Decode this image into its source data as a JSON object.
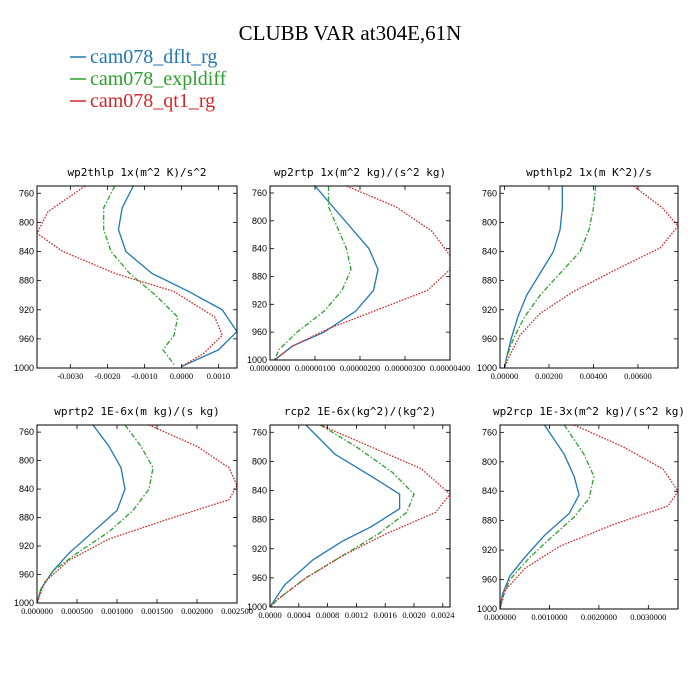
{
  "figure": {
    "title": "CLUBB VAR at304E,61N",
    "legend": [
      {
        "name": "cam078_dflt_rg",
        "color": "#1f77b4",
        "dash": "solid"
      },
      {
        "name": "cam078_expldiff",
        "color": "#2ca02c",
        "dash": "dashdot"
      },
      {
        "name": "cam078_qt1_rg",
        "color": "#d62728",
        "dash": "dotted"
      }
    ]
  },
  "chart_data": [
    {
      "type": "line",
      "title": "wp2thlp  1x(m^2 K)/s^2",
      "xlim": [
        -0.0039,
        0.0015
      ],
      "ylim": [
        750,
        1000
      ],
      "y_reversed": true,
      "xticks": [
        -0.003,
        -0.002,
        -0.001,
        0.0,
        0.001
      ],
      "xtick_labels": [
        "-0.0030",
        "-0.0020",
        "-0.0010",
        "0.0000",
        "0.0010"
      ],
      "yticks": [
        760,
        800,
        840,
        880,
        920,
        960,
        1000
      ],
      "series": [
        {
          "name": "cam078_dflt_rg",
          "points": [
            [
              -0.0013,
              750
            ],
            [
              -0.0016,
              780
            ],
            [
              -0.0017,
              810
            ],
            [
              -0.0015,
              840
            ],
            [
              -0.0008,
              870
            ],
            [
              0.0002,
              895
            ],
            [
              0.0011,
              920
            ],
            [
              0.0015,
              950
            ],
            [
              0.001,
              975
            ],
            [
              0.0,
              998
            ]
          ]
        },
        {
          "name": "cam078_expldiff",
          "points": [
            [
              -0.0018,
              750
            ],
            [
              -0.0021,
              780
            ],
            [
              -0.0021,
              810
            ],
            [
              -0.0019,
              840
            ],
            [
              -0.0014,
              870
            ],
            [
              -0.0007,
              900
            ],
            [
              -0.0001,
              930
            ],
            [
              -0.0002,
              955
            ],
            [
              -0.0005,
              975
            ],
            [
              -0.0002,
              995
            ]
          ]
        },
        {
          "name": "cam078_qt1_rg",
          "points": [
            [
              -0.0026,
              750
            ],
            [
              -0.0036,
              785
            ],
            [
              -0.0039,
              815
            ],
            [
              -0.0032,
              840
            ],
            [
              -0.0018,
              870
            ],
            [
              -0.0002,
              895
            ],
            [
              0.0009,
              930
            ],
            [
              0.0011,
              955
            ],
            [
              0.0006,
              980
            ],
            [
              0.0,
              998
            ]
          ]
        }
      ]
    },
    {
      "type": "line",
      "title": "wp2rtp  1x(m^2 kg)/(s^2 kg)",
      "xlim": [
        0.0,
        4e-06
      ],
      "ylim": [
        750,
        1000
      ],
      "y_reversed": true,
      "xticks": [
        0.0,
        1e-06,
        2e-06,
        3e-06,
        4e-06
      ],
      "xtick_labels": [
        "0.000000",
        "0.000001",
        "0.000002",
        "0.000003",
        "0.000004"
      ],
      "xtick_label_suffix_pairs": [
        "0.00000000",
        "0.00000100",
        "0.00000200",
        "0.00000300",
        "0.00000400"
      ],
      "yticks": [
        760,
        800,
        840,
        880,
        920,
        960,
        1000
      ],
      "series": [
        {
          "name": "cam078_dflt_rg",
          "points": [
            [
              1e-06,
              750
            ],
            [
              1.4e-06,
              780
            ],
            [
              1.8e-06,
              810
            ],
            [
              2.2e-06,
              840
            ],
            [
              2.4e-06,
              870
            ],
            [
              2.3e-06,
              900
            ],
            [
              1.9e-06,
              930
            ],
            [
              1.2e-06,
              960
            ],
            [
              5e-07,
              980
            ],
            [
              1e-07,
              1000
            ]
          ]
        },
        {
          "name": "cam078_expldiff",
          "points": [
            [
              1.3e-06,
              750
            ],
            [
              1.3e-06,
              780
            ],
            [
              1.5e-06,
              810
            ],
            [
              1.7e-06,
              840
            ],
            [
              1.8e-06,
              870
            ],
            [
              1.6e-06,
              900
            ],
            [
              1.2e-06,
              930
            ],
            [
              6e-07,
              960
            ],
            [
              2e-07,
              985
            ],
            [
              1e-07,
              1000
            ]
          ]
        },
        {
          "name": "cam078_qt1_rg",
          "points": [
            [
              1.7e-06,
              750
            ],
            [
              2.8e-06,
              780
            ],
            [
              3.6e-06,
              815
            ],
            [
              4e-06,
              850
            ],
            [
              4e-06,
              870
            ],
            [
              3.5e-06,
              900
            ],
            [
              2.5e-06,
              925
            ],
            [
              1.3e-06,
              955
            ],
            [
              5e-07,
              980
            ],
            [
              1e-07,
              1000
            ]
          ]
        }
      ]
    },
    {
      "type": "line",
      "title": "wpthlp2  1x(m K^2)/s",
      "xlim": [
        -0.0002,
        0.0078
      ],
      "ylim": [
        750,
        1000
      ],
      "y_reversed": true,
      "xticks": [
        0.0,
        0.002,
        0.004,
        0.006
      ],
      "xtick_labels": [
        "0.00000",
        "0.00200",
        "0.00400",
        "0.00600"
      ],
      "yticks": [
        760,
        800,
        840,
        880,
        920,
        960,
        1000
      ],
      "series": [
        {
          "name": "cam078_dflt_rg",
          "points": [
            [
              0.0026,
              750
            ],
            [
              0.0026,
              780
            ],
            [
              0.0025,
              810
            ],
            [
              0.0022,
              840
            ],
            [
              0.0016,
              870
            ],
            [
              0.001,
              900
            ],
            [
              0.0006,
              930
            ],
            [
              0.0003,
              960
            ],
            [
              0.0001,
              985
            ],
            [
              0.0,
              1000
            ]
          ]
        },
        {
          "name": "cam078_expldiff",
          "points": [
            [
              0.0041,
              750
            ],
            [
              0.004,
              780
            ],
            [
              0.0038,
              810
            ],
            [
              0.0034,
              840
            ],
            [
              0.0025,
              870
            ],
            [
              0.0016,
              900
            ],
            [
              0.0009,
              930
            ],
            [
              0.0004,
              960
            ],
            [
              0.0001,
              985
            ],
            [
              0.0,
              1000
            ]
          ]
        },
        {
          "name": "cam078_qt1_rg",
          "points": [
            [
              0.0058,
              750
            ],
            [
              0.0071,
              780
            ],
            [
              0.0078,
              805
            ],
            [
              0.007,
              835
            ],
            [
              0.005,
              865
            ],
            [
              0.0031,
              895
            ],
            [
              0.0016,
              925
            ],
            [
              0.0007,
              955
            ],
            [
              0.0002,
              985
            ],
            [
              0.0,
              1000
            ]
          ]
        }
      ]
    },
    {
      "type": "line",
      "title": "wprtp2  1E-6x(m kg)/(s kg)",
      "xlim": [
        0.0,
        0.0025
      ],
      "ylim": [
        750,
        1000
      ],
      "y_reversed": true,
      "xticks": [
        0.0,
        0.0005,
        0.001,
        0.0015,
        0.002,
        0.0025
      ],
      "xtick_labels": [
        "0.000000",
        "0.000500",
        "0.001000",
        "0.001500",
        "0.002000",
        "0.002500"
      ],
      "yticks": [
        760,
        800,
        840,
        880,
        920,
        960,
        1000
      ],
      "series": [
        {
          "name": "cam078_dflt_rg",
          "points": [
            [
              0.0007,
              750
            ],
            [
              0.0009,
              780
            ],
            [
              0.00105,
              810
            ],
            [
              0.0011,
              840
            ],
            [
              0.001,
              870
            ],
            [
              0.0007,
              900
            ],
            [
              0.0004,
              930
            ],
            [
              0.0002,
              955
            ],
            [
              5e-05,
              980
            ],
            [
              0.0,
              1000
            ]
          ]
        },
        {
          "name": "cam078_expldiff",
          "points": [
            [
              0.0011,
              750
            ],
            [
              0.0013,
              780
            ],
            [
              0.00145,
              810
            ],
            [
              0.0014,
              840
            ],
            [
              0.0012,
              870
            ],
            [
              0.0009,
              900
            ],
            [
              0.0005,
              930
            ],
            [
              0.0002,
              955
            ],
            [
              5e-05,
              980
            ],
            [
              0.0,
              1000
            ]
          ]
        },
        {
          "name": "cam078_qt1_rg",
          "points": [
            [
              0.0014,
              750
            ],
            [
              0.002,
              780
            ],
            [
              0.0024,
              810
            ],
            [
              0.0025,
              835
            ],
            [
              0.0024,
              855
            ],
            [
              0.0017,
              880
            ],
            [
              0.0009,
              910
            ],
            [
              0.0004,
              940
            ],
            [
              0.0001,
              970
            ],
            [
              0.0,
              1000
            ]
          ]
        }
      ]
    },
    {
      "type": "line",
      "title": "rcp2  1E-6x(kg^2)/(kg^2)",
      "xlim": [
        0.0,
        0.0025
      ],
      "ylim": [
        750,
        1000
      ],
      "y_reversed": true,
      "xticks": [
        0.0,
        0.0004,
        0.0008,
        0.0012,
        0.0016,
        0.002,
        0.0024
      ],
      "xtick_labels": [
        "0.0000",
        "0.0004",
        "0.0008",
        "0.0012",
        "0.0016",
        "0.0020",
        "0.0024"
      ],
      "yticks": [
        760,
        800,
        840,
        880,
        920,
        960,
        1000
      ],
      "series": [
        {
          "name": "cam078_dflt_rg",
          "points": [
            [
              0.0005,
              750
            ],
            [
              0.0009,
              790
            ],
            [
              0.0014,
              820
            ],
            [
              0.0018,
              845
            ],
            [
              0.0018,
              865
            ],
            [
              0.0014,
              890
            ],
            [
              0.001,
              910
            ],
            [
              0.0006,
              935
            ],
            [
              0.0002,
              970
            ],
            [
              0.0,
              1000
            ]
          ]
        },
        {
          "name": "cam078_expldiff",
          "points": [
            [
              0.0007,
              750
            ],
            [
              0.0012,
              780
            ],
            [
              0.0017,
              815
            ],
            [
              0.002,
              845
            ],
            [
              0.0019,
              870
            ],
            [
              0.0015,
              900
            ],
            [
              0.001,
              930
            ],
            [
              0.0005,
              960
            ],
            [
              0.0001,
              990
            ],
            [
              0.0,
              1000
            ]
          ]
        },
        {
          "name": "cam078_qt1_rg",
          "points": [
            [
              0.0007,
              750
            ],
            [
              0.0014,
              780
            ],
            [
              0.0021,
              810
            ],
            [
              0.0025,
              845
            ],
            [
              0.0023,
              870
            ],
            [
              0.0016,
              900
            ],
            [
              0.001,
              930
            ],
            [
              0.0005,
              960
            ],
            [
              0.0001,
              990
            ],
            [
              0.0,
              1000
            ]
          ]
        }
      ]
    },
    {
      "type": "line",
      "title": "wp2rcp  1E-3x(m^2 kg)/(s^2 kg)",
      "xlim": [
        0.0,
        0.0036
      ],
      "ylim": [
        750,
        1000
      ],
      "y_reversed": true,
      "xticks": [
        0.0,
        0.001,
        0.002,
        0.003
      ],
      "xtick_labels": [
        "0.000000",
        "0.0010000",
        "0.0020000",
        "0.0030000"
      ],
      "yticks": [
        760,
        800,
        840,
        880,
        920,
        960,
        1000
      ],
      "series": [
        {
          "name": "cam078_dflt_rg",
          "points": [
            [
              0.0009,
              750
            ],
            [
              0.0013,
              790
            ],
            [
              0.0015,
              820
            ],
            [
              0.0016,
              845
            ],
            [
              0.0014,
              870
            ],
            [
              0.0009,
              900
            ],
            [
              0.0005,
              930
            ],
            [
              0.0002,
              955
            ],
            [
              5e-05,
              980
            ],
            [
              0.0,
              1000
            ]
          ]
        },
        {
          "name": "cam078_expldiff",
          "points": [
            [
              0.0013,
              750
            ],
            [
              0.0017,
              790
            ],
            [
              0.0019,
              820
            ],
            [
              0.0018,
              850
            ],
            [
              0.0015,
              875
            ],
            [
              0.001,
              905
            ],
            [
              0.0006,
              930
            ],
            [
              0.0002,
              960
            ],
            [
              5e-05,
              985
            ],
            [
              0.0,
              1000
            ]
          ]
        },
        {
          "name": "cam078_qt1_rg",
          "points": [
            [
              0.0015,
              750
            ],
            [
              0.0025,
              780
            ],
            [
              0.0033,
              810
            ],
            [
              0.0036,
              840
            ],
            [
              0.0034,
              860
            ],
            [
              0.0023,
              885
            ],
            [
              0.0012,
              915
            ],
            [
              0.0005,
              945
            ],
            [
              0.0001,
              975
            ],
            [
              0.0,
              1000
            ]
          ]
        }
      ]
    }
  ]
}
